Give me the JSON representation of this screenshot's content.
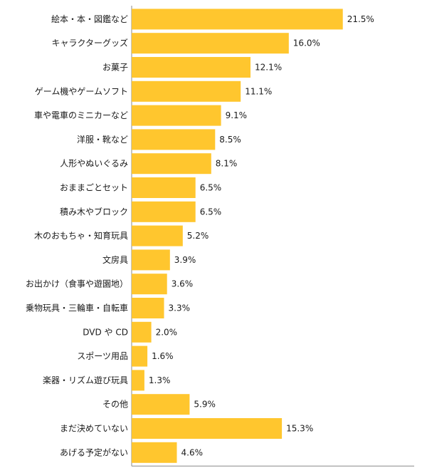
{
  "chart_data": {
    "type": "bar",
    "orientation": "horizontal",
    "categories": [
      "絵本・本・図鑑など",
      "キャラクターグッズ",
      "お菓子",
      "ゲーム機やゲームソフト",
      "車や電車のミニカーなど",
      "洋服・靴など",
      "人形やぬいぐるみ",
      "おままごとセット",
      "積み木やブロック",
      "木のおもちゃ・知育玩具",
      "文房具",
      "お出かけ（食事や遊園地）",
      "乗物玩具・三輪車・自転車",
      "DVD や CD",
      "スポーツ用品",
      "楽器・リズム遊び玩具",
      "その他",
      "まだ決めていない",
      "あげる予定がない"
    ],
    "values": [
      21.5,
      16.0,
      12.1,
      11.1,
      9.1,
      8.5,
      8.1,
      6.5,
      6.5,
      5.2,
      3.9,
      3.6,
      3.3,
      2.0,
      1.6,
      1.3,
      5.9,
      15.3,
      4.6
    ],
    "value_labels": [
      "21.5%",
      "16.0%",
      "12.1%",
      "11.1%",
      "9.1%",
      "8.5%",
      "8.1%",
      "6.5%",
      "6.5%",
      "5.2%",
      "3.9%",
      "3.6%",
      "3.3%",
      "2.0%",
      "1.6%",
      "1.3%",
      "5.9%",
      "15.3%",
      "4.6%"
    ],
    "unit": "%",
    "xlim": [
      0,
      25
    ],
    "bar_color": "#FFC62E",
    "axis_color": "#888888",
    "grid": false,
    "legend": "none"
  }
}
